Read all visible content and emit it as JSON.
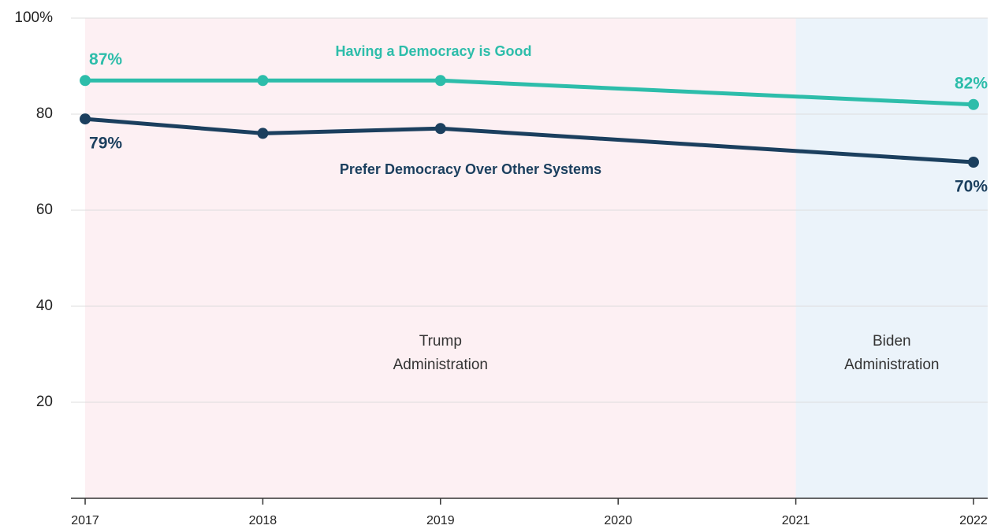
{
  "chart_data": {
    "type": "line",
    "x": [
      2017,
      2018,
      2019,
      2022
    ],
    "series": [
      {
        "name": "Having a Democracy is Good",
        "color": "#2dbdaa",
        "values": [
          87,
          87,
          87,
          82
        ],
        "value_labels": [
          "87%",
          null,
          null,
          "82%"
        ]
      },
      {
        "name": "Prefer Democracy Over Other Systems",
        "color": "#1b3f5e",
        "values": [
          79,
          76,
          77,
          70
        ],
        "value_labels": [
          "79%",
          null,
          null,
          "70%"
        ]
      }
    ],
    "bands": [
      {
        "lines": [
          "Trump",
          "Administration"
        ],
        "start": 2017,
        "end": 2021,
        "color": "#fdf0f3"
      },
      {
        "lines": [
          "Biden",
          "Administration"
        ],
        "start": 2021,
        "color": "#ebf3fa"
      }
    ],
    "xlim": [
      2016.92,
      2022.08
    ],
    "xticks": [
      2017,
      2018,
      2019,
      2020,
      2021,
      2022
    ],
    "ylim": [
      0,
      100
    ],
    "yticks": [
      20,
      40,
      60,
      80,
      {
        "value": 100,
        "label": "100%"
      }
    ],
    "grid": true
  }
}
